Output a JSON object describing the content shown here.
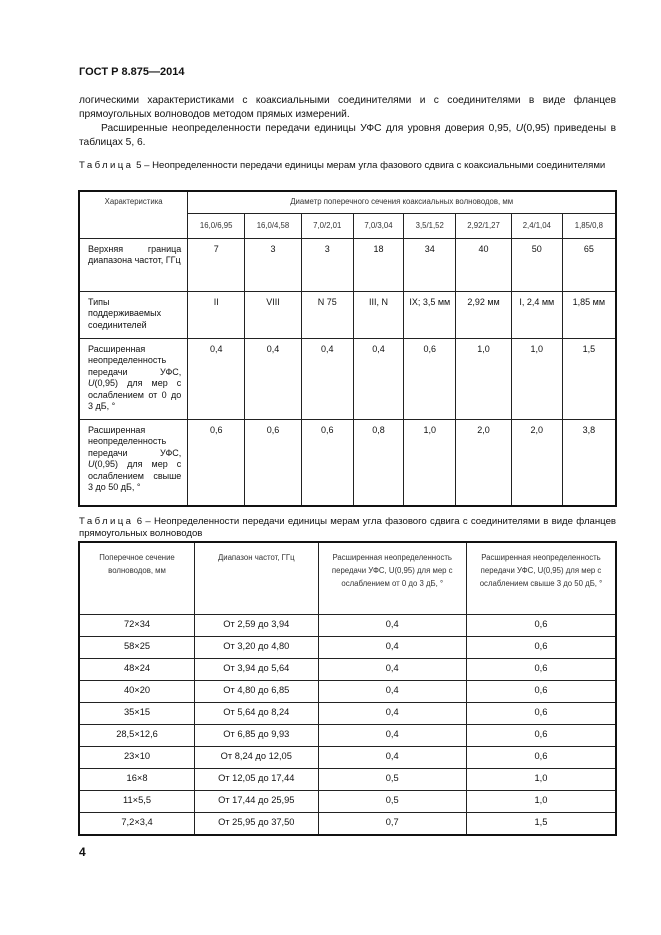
{
  "header": {
    "title": "ГОСТ Р 8.875—2014"
  },
  "body": {
    "p1": "логическими характеристиками с коаксиальными соединителями и с соединителями в виде фланцев прямоугольных волноводов методом прямых измерений.",
    "p2_before": "Расширенные неопределенности передачи единицы УФС для уровня доверия 0,95, ",
    "p2_u": "U",
    "p2_after": "(0,95) приведены в таблицах 5, 6."
  },
  "table5": {
    "caption_label": "Таблица",
    "caption_text": " 5 – Неопределенности передачи единицы мерам угла фазового сдвига с коаксиальными соединителями",
    "col_header": "Характеристика",
    "group_header": "Диаметр поперечного сечения коаксиальных волноводов, мм",
    "diameters": [
      "16,0/6,95",
      "16,0/4,58",
      "7,0/2,01",
      "7,0/3,04",
      "3,5/1,52",
      "2,92/1,27",
      "2,4/1,04",
      "1,85/0,8"
    ],
    "rows": [
      {
        "label": "Верхняя граница диапазона частот, ГГц",
        "values": [
          "7",
          "3",
          "3",
          "18",
          "34",
          "40",
          "50",
          "65"
        ]
      },
      {
        "label": "Типы поддерживаемых соединителей",
        "values": [
          "II",
          "VIII",
          "N 75",
          "III, N",
          "IX; 3,5 мм",
          "2,92 мм",
          "I, 2,4 мм",
          "1,85 мм"
        ]
      },
      {
        "label_pre": "Расширенная неопределенность передачи УФС, ",
        "label_u": "U",
        "label_post": "(0,95) для мер с ослаблением от 0 до 3 дБ, °",
        "values": [
          "0,4",
          "0,4",
          "0,4",
          "0,4",
          "0,6",
          "1,0",
          "1,0",
          "1,5"
        ]
      },
      {
        "label_pre": "Расширенная неопределенность передачи УФС, ",
        "label_u": "U",
        "label_post": "(0,95) для мер с ослаблением свыше 3 до 50 дБ, °",
        "values": [
          "0,6",
          "0,6",
          "0,6",
          "0,8",
          "1,0",
          "2,0",
          "2,0",
          "3,8"
        ]
      }
    ]
  },
  "table6": {
    "caption_label": "Таблица",
    "caption_text": " 6 – Неопределенности передачи единицы мерам угла фазового сдвига с соединителями в виде фланцев прямоугольных волноводов",
    "headers": [
      "Поперечное сечение волноводов, мм",
      "Диапазон частот, ГГц",
      "Расширенная неопределенность передачи УФС, U(0,95) для мер с ослаблением от 0 до 3 дБ, °",
      "Расширенная неопределенность передачи УФС, U(0,95) для мер с ослаблением свыше 3 до 50 дБ, °"
    ],
    "rows": [
      [
        "72×34",
        "От 2,59 до 3,94",
        "0,4",
        "0,6"
      ],
      [
        "58×25",
        "От 3,20 до 4,80",
        "0,4",
        "0,6"
      ],
      [
        "48×24",
        "От 3,94 до 5,64",
        "0,4",
        "0,6"
      ],
      [
        "40×20",
        "От 4,80 до 6,85",
        "0,4",
        "0,6"
      ],
      [
        "35×15",
        "От 5,64 до 8,24",
        "0,4",
        "0,6"
      ],
      [
        "28,5×12,6",
        "От 6,85 до 9,93",
        "0,4",
        "0,6"
      ],
      [
        "23×10",
        "От 8,24 до 12,05",
        "0,4",
        "0,6"
      ],
      [
        "16×8",
        "От 12,05 до 17,44",
        "0,5",
        "1,0"
      ],
      [
        "11×5,5",
        "От 17,44 до 25,95",
        "0,5",
        "1,0"
      ],
      [
        "7,2×3,4",
        "От 25,95 до 37,50",
        "0,7",
        "1,5"
      ]
    ]
  },
  "footer": {
    "page_number": "4"
  }
}
